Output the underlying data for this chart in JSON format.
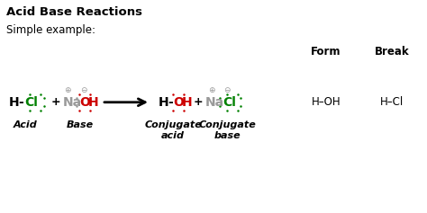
{
  "title": "Acid Base Reactions",
  "subtitle": "Simple example:",
  "bg_color": "#ffffff",
  "text_color": "#000000",
  "green_color": "#008000",
  "red_color": "#cc0000",
  "gray_color": "#999999",
  "title_fontsize": 9.5,
  "subtitle_fontsize": 8.5,
  "mol_fontsize": 10,
  "label_fontsize": 8,
  "form_label": "Form",
  "break_label": "Break",
  "form_mol": "H–OH",
  "break_mol": "H–Cl",
  "acid_label": "Acid",
  "base_label": "Base",
  "conj_acid_label": "Conjugate\nacid",
  "conj_base_label": "Conjugate\nbase",
  "my": 0.52,
  "dot_size": 1.8
}
